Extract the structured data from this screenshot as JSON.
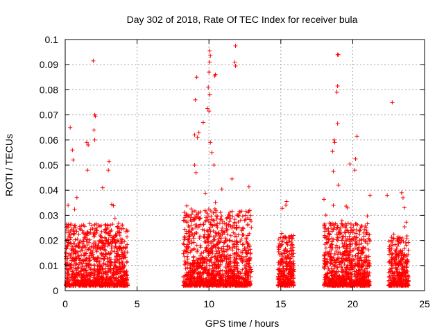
{
  "chart_data": {
    "type": "scatter",
    "title": "Day 302 of 2018, Rate Of TEC Index for receiver bula",
    "xlabel": "GPS time / hours",
    "ylabel": "ROTI / TECUs",
    "xlim": [
      0,
      25
    ],
    "ylim": [
      0,
      0.1
    ],
    "x_ticks": [
      "0",
      "5",
      "10",
      "15",
      "20",
      "25"
    ],
    "y_ticks": [
      "0",
      "0.01",
      "0.02",
      "0.03",
      "0.04",
      "0.05",
      "0.06",
      "0.07",
      "0.08",
      "0.09",
      "0.1"
    ],
    "grid": true,
    "marker": "plus",
    "color": "#ff0000",
    "segments": [
      {
        "x_start": 0.05,
        "x_end": 4.35,
        "y_typical_max": 0.025
      },
      {
        "x_start": 8.2,
        "x_end": 12.95,
        "y_typical_max": 0.03
      },
      {
        "x_start": 14.8,
        "x_end": 15.9,
        "y_typical_max": 0.02
      },
      {
        "x_start": 18.0,
        "x_end": 21.2,
        "y_typical_max": 0.025
      },
      {
        "x_start": 22.5,
        "x_end": 23.9,
        "y_typical_max": 0.02
      }
    ],
    "notable_points": [
      {
        "x": 0.35,
        "y": 0.065
      },
      {
        "x": 0.5,
        "y": 0.056
      },
      {
        "x": 0.55,
        "y": 0.052
      },
      {
        "x": 1.5,
        "y": 0.059
      },
      {
        "x": 1.6,
        "y": 0.058
      },
      {
        "x": 1.55,
        "y": 0.048
      },
      {
        "x": 1.95,
        "y": 0.0915
      },
      {
        "x": 2.05,
        "y": 0.07
      },
      {
        "x": 2.1,
        "y": 0.0695
      },
      {
        "x": 2.0,
        "y": 0.064
      },
      {
        "x": 2.05,
        "y": 0.06
      },
      {
        "x": 3.05,
        "y": 0.0515
      },
      {
        "x": 3.0,
        "y": 0.048
      },
      {
        "x": 2.6,
        "y": 0.041
      },
      {
        "x": 0.2,
        "y": 0.034
      },
      {
        "x": 9.15,
        "y": 0.085
      },
      {
        "x": 9.05,
        "y": 0.076
      },
      {
        "x": 9.0,
        "y": 0.062
      },
      {
        "x": 9.2,
        "y": 0.061
      },
      {
        "x": 9.3,
        "y": 0.063
      },
      {
        "x": 9.0,
        "y": 0.05
      },
      {
        "x": 9.1,
        "y": 0.047
      },
      {
        "x": 9.6,
        "y": 0.067
      },
      {
        "x": 9.9,
        "y": 0.0725
      },
      {
        "x": 10.0,
        "y": 0.0715
      },
      {
        "x": 10.05,
        "y": 0.0955
      },
      {
        "x": 10.1,
        "y": 0.0935
      },
      {
        "x": 10.05,
        "y": 0.091
      },
      {
        "x": 10.0,
        "y": 0.087
      },
      {
        "x": 9.95,
        "y": 0.081
      },
      {
        "x": 10.05,
        "y": 0.078
      },
      {
        "x": 10.4,
        "y": 0.0855
      },
      {
        "x": 10.45,
        "y": 0.086
      },
      {
        "x": 10.35,
        "y": 0.05
      },
      {
        "x": 11.85,
        "y": 0.0975
      },
      {
        "x": 11.8,
        "y": 0.091
      },
      {
        "x": 11.85,
        "y": 0.0895
      },
      {
        "x": 11.6,
        "y": 0.0445
      },
      {
        "x": 10.1,
        "y": 0.059
      },
      {
        "x": 10.2,
        "y": 0.055
      },
      {
        "x": 12.7,
        "y": 0.026
      },
      {
        "x": 15.35,
        "y": 0.034
      },
      {
        "x": 15.4,
        "y": 0.0355
      },
      {
        "x": 18.7,
        "y": 0.06
      },
      {
        "x": 18.75,
        "y": 0.059
      },
      {
        "x": 18.6,
        "y": 0.0555
      },
      {
        "x": 18.95,
        "y": 0.094
      },
      {
        "x": 19.0,
        "y": 0.094
      },
      {
        "x": 18.95,
        "y": 0.0815
      },
      {
        "x": 18.9,
        "y": 0.079
      },
      {
        "x": 18.95,
        "y": 0.0665
      },
      {
        "x": 18.65,
        "y": 0.0475
      },
      {
        "x": 19.8,
        "y": 0.0505
      },
      {
        "x": 20.3,
        "y": 0.0615
      },
      {
        "x": 20.2,
        "y": 0.0525
      },
      {
        "x": 20.15,
        "y": 0.048
      },
      {
        "x": 19.0,
        "y": 0.042
      },
      {
        "x": 21.2,
        "y": 0.038
      },
      {
        "x": 22.75,
        "y": 0.075
      },
      {
        "x": 22.4,
        "y": 0.038
      },
      {
        "x": 23.4,
        "y": 0.039
      },
      {
        "x": 23.5,
        "y": 0.037
      },
      {
        "x": 23.6,
        "y": 0.033
      }
    ]
  }
}
